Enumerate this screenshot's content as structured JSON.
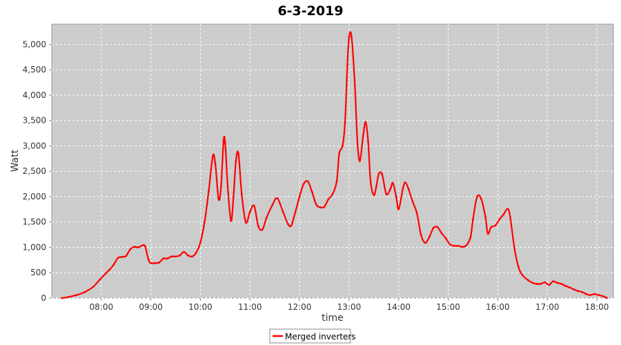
{
  "chart_data": {
    "type": "line",
    "title": "6-3-2019",
    "xlabel": "time",
    "ylabel": "Watt",
    "xlim": [
      "07:00",
      "18:20"
    ],
    "ylim": [
      0,
      5400
    ],
    "x_ticks": [
      "08:00",
      "09:00",
      "10:00",
      "11:00",
      "12:00",
      "13:00",
      "14:00",
      "15:00",
      "16:00",
      "17:00",
      "18:00"
    ],
    "y_ticks": [
      0,
      500,
      1000,
      1500,
      2000,
      2500,
      3000,
      3500,
      4000,
      4500,
      5000
    ],
    "y_tick_labels": [
      "0",
      "500",
      "1,000",
      "1,500",
      "2,000",
      "2,500",
      "3,000",
      "3,500",
      "4,000",
      "4,500",
      "5,000"
    ],
    "grid": true,
    "plot_background": "#cccccc",
    "legend_position": "bottom-center",
    "series": [
      {
        "name": "Merged inverters",
        "color": "#ff0000",
        "points": [
          [
            "07:12",
            0
          ],
          [
            "07:20",
            20
          ],
          [
            "07:30",
            60
          ],
          [
            "07:40",
            120
          ],
          [
            "07:50",
            220
          ],
          [
            "07:58",
            360
          ],
          [
            "08:05",
            480
          ],
          [
            "08:10",
            560
          ],
          [
            "08:15",
            660
          ],
          [
            "08:20",
            790
          ],
          [
            "08:25",
            810
          ],
          [
            "08:30",
            830
          ],
          [
            "08:35",
            960
          ],
          [
            "08:40",
            1010
          ],
          [
            "08:45",
            1000
          ],
          [
            "08:50",
            1040
          ],
          [
            "08:53",
            1020
          ],
          [
            "08:57",
            760
          ],
          [
            "09:00",
            690
          ],
          [
            "09:05",
            690
          ],
          [
            "09:10",
            700
          ],
          [
            "09:15",
            780
          ],
          [
            "09:20",
            780
          ],
          [
            "09:25",
            820
          ],
          [
            "09:30",
            820
          ],
          [
            "09:35",
            840
          ],
          [
            "09:40",
            910
          ],
          [
            "09:45",
            840
          ],
          [
            "09:50",
            820
          ],
          [
            "09:55",
            900
          ],
          [
            "10:00",
            1100
          ],
          [
            "10:05",
            1500
          ],
          [
            "10:10",
            2100
          ],
          [
            "10:15",
            2800
          ],
          [
            "10:18",
            2650
          ],
          [
            "10:22",
            1950
          ],
          [
            "10:25",
            2200
          ],
          [
            "10:28",
            3100
          ],
          [
            "10:30",
            3050
          ],
          [
            "10:33",
            2200
          ],
          [
            "10:37",
            1520
          ],
          [
            "10:40",
            2000
          ],
          [
            "10:43",
            2700
          ],
          [
            "10:46",
            2850
          ],
          [
            "10:50",
            2050
          ],
          [
            "10:55",
            1490
          ],
          [
            "11:00",
            1700
          ],
          [
            "11:05",
            1820
          ],
          [
            "11:10",
            1420
          ],
          [
            "11:15",
            1350
          ],
          [
            "11:20",
            1580
          ],
          [
            "11:27",
            1830
          ],
          [
            "11:33",
            1970
          ],
          [
            "11:40",
            1700
          ],
          [
            "11:46",
            1460
          ],
          [
            "11:50",
            1430
          ],
          [
            "11:55",
            1700
          ],
          [
            "12:00",
            2000
          ],
          [
            "12:05",
            2250
          ],
          [
            "12:10",
            2300
          ],
          [
            "12:15",
            2100
          ],
          [
            "12:20",
            1850
          ],
          [
            "12:25",
            1790
          ],
          [
            "12:30",
            1800
          ],
          [
            "12:35",
            1950
          ],
          [
            "12:40",
            2050
          ],
          [
            "12:45",
            2300
          ],
          [
            "12:48",
            2850
          ],
          [
            "12:52",
            3000
          ],
          [
            "12:55",
            3450
          ],
          [
            "12:58",
            4600
          ],
          [
            "13:00",
            5150
          ],
          [
            "13:03",
            5150
          ],
          [
            "13:07",
            4200
          ],
          [
            "13:10",
            3100
          ],
          [
            "13:13",
            2700
          ],
          [
            "13:17",
            3200
          ],
          [
            "13:20",
            3470
          ],
          [
            "13:23",
            3100
          ],
          [
            "13:26",
            2300
          ],
          [
            "13:30",
            2030
          ],
          [
            "13:33",
            2200
          ],
          [
            "13:36",
            2450
          ],
          [
            "13:40",
            2440
          ],
          [
            "13:45",
            2050
          ],
          [
            "13:50",
            2150
          ],
          [
            "13:53",
            2270
          ],
          [
            "13:57",
            2000
          ],
          [
            "14:00",
            1750
          ],
          [
            "14:05",
            2150
          ],
          [
            "14:08",
            2280
          ],
          [
            "14:12",
            2150
          ],
          [
            "14:17",
            1900
          ],
          [
            "14:22",
            1680
          ],
          [
            "14:27",
            1250
          ],
          [
            "14:32",
            1090
          ],
          [
            "14:37",
            1200
          ],
          [
            "14:42",
            1380
          ],
          [
            "14:47",
            1400
          ],
          [
            "14:52",
            1280
          ],
          [
            "14:57",
            1180
          ],
          [
            "15:02",
            1060
          ],
          [
            "15:07",
            1030
          ],
          [
            "15:12",
            1030
          ],
          [
            "15:17",
            1010
          ],
          [
            "15:22",
            1040
          ],
          [
            "15:27",
            1200
          ],
          [
            "15:30",
            1550
          ],
          [
            "15:35",
            2000
          ],
          [
            "15:40",
            1950
          ],
          [
            "15:45",
            1600
          ],
          [
            "15:48",
            1270
          ],
          [
            "15:52",
            1400
          ],
          [
            "15:57",
            1430
          ],
          [
            "16:02",
            1550
          ],
          [
            "16:07",
            1650
          ],
          [
            "16:12",
            1760
          ],
          [
            "16:15",
            1600
          ],
          [
            "16:20",
            1000
          ],
          [
            "16:25",
            620
          ],
          [
            "16:30",
            450
          ],
          [
            "16:37",
            350
          ],
          [
            "16:42",
            300
          ],
          [
            "16:47",
            280
          ],
          [
            "16:52",
            280
          ],
          [
            "16:57",
            310
          ],
          [
            "17:02",
            260
          ],
          [
            "17:07",
            330
          ],
          [
            "17:12",
            300
          ],
          [
            "17:17",
            280
          ],
          [
            "17:22",
            240
          ],
          [
            "17:27",
            210
          ],
          [
            "17:32",
            170
          ],
          [
            "17:37",
            140
          ],
          [
            "17:42",
            120
          ],
          [
            "17:47",
            80
          ],
          [
            "17:52",
            60
          ],
          [
            "17:57",
            80
          ],
          [
            "18:02",
            60
          ],
          [
            "18:07",
            40
          ],
          [
            "18:12",
            0
          ]
        ]
      }
    ]
  }
}
